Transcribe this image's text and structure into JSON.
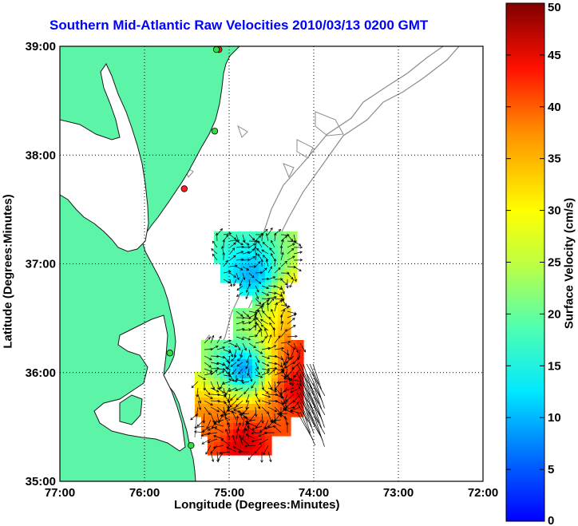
{
  "title": "Southern Mid-Atlantic Raw Velocities 2010/03/13 0200 GMT",
  "axes": {
    "xlabel": "Longitude (Degrees:Minutes)",
    "ylabel": "Latitude (Degrees:Minutes)",
    "x_ticks": [
      "77:00",
      "76:00",
      "75:00",
      "74:00",
      "73:00",
      "72:00"
    ],
    "y_ticks": [
      "39:00",
      "38:00",
      "37:00",
      "36:00",
      "35:00"
    ],
    "lon_range": [
      -77,
      -72
    ],
    "lat_range": [
      35,
      39
    ],
    "grid": "dotted"
  },
  "colorbar": {
    "label": "Surface Velocity (cm/s)",
    "ticks": [
      "50",
      "45",
      "40",
      "35",
      "30",
      "25",
      "20",
      "15",
      "10",
      "5",
      "0"
    ],
    "range": [
      0,
      50
    ],
    "colormap": "jet"
  },
  "colors": {
    "land": "#5cf5a8",
    "water": "#ffffff",
    "bathymetry": "#8c8c8c",
    "title": "#0000ff"
  },
  "stations": [
    {
      "lon": -75.12,
      "lat": 38.97,
      "status": "red"
    },
    {
      "lon": -75.15,
      "lat": 38.97,
      "status": "green"
    },
    {
      "lon": -75.17,
      "lat": 38.22,
      "status": "green"
    },
    {
      "lon": -75.53,
      "lat": 37.69,
      "status": "red"
    },
    {
      "lon": -75.7,
      "lat": 36.18,
      "status": "green"
    },
    {
      "lon": -75.45,
      "lat": 35.33,
      "status": "green"
    }
  ],
  "velocity_hotspots": [
    {
      "lon": -74.25,
      "lat": 36.7,
      "speed": 35
    },
    {
      "lon": -74.75,
      "lat": 36.92,
      "speed": 13
    },
    {
      "lon": -74.85,
      "lat": 36.05,
      "speed": 10
    },
    {
      "lon": -74.22,
      "lat": 35.9,
      "speed": 47
    },
    {
      "lon": -74.9,
      "lat": 35.4,
      "speed": 48
    },
    {
      "lon": -75.15,
      "lat": 35.55,
      "speed": 38
    },
    {
      "lon": -74.15,
      "lat": 36.2,
      "speed": 44
    }
  ]
}
